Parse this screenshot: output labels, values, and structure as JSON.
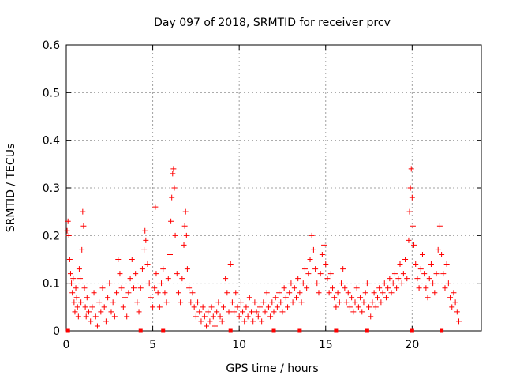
{
  "chart_data": {
    "type": "scatter",
    "title": "Day 097 of 2018, SRMTID for receiver prcv",
    "xlabel": "GPS time / hours",
    "ylabel": "SRMTID / TECUs",
    "xlim": [
      0,
      24
    ],
    "ylim": [
      0,
      0.6
    ],
    "x_ticks": [
      0,
      5,
      10,
      15,
      20
    ],
    "x_tick_labels": [
      "0",
      "5",
      "10",
      "15",
      "20"
    ],
    "y_ticks": [
      0,
      0.1,
      0.2,
      0.3,
      0.4,
      0.5,
      0.6
    ],
    "y_tick_labels": [
      "0",
      "0.1",
      "0.2",
      "0.3",
      "0.4",
      "0.5",
      "0.6"
    ],
    "grid": true,
    "marker": "plus",
    "color": "#ff0000",
    "series": [
      {
        "name": "SRMTID",
        "points": [
          [
            0.05,
            0.21
          ],
          [
            0.1,
            0.23
          ],
          [
            0.15,
            0.2
          ],
          [
            0.2,
            0.15
          ],
          [
            0.25,
            0.12
          ],
          [
            0.3,
            0.1
          ],
          [
            0.35,
            0.08
          ],
          [
            0.4,
            0.11
          ],
          [
            0.45,
            0.06
          ],
          [
            0.5,
            0.04
          ],
          [
            0.55,
            0.09
          ],
          [
            0.6,
            0.07
          ],
          [
            0.65,
            0.05
          ],
          [
            0.7,
            0.03
          ],
          [
            0.75,
            0.13
          ],
          [
            0.8,
            0.11
          ],
          [
            0.85,
            0.06
          ],
          [
            0.9,
            0.17
          ],
          [
            0.95,
            0.25
          ],
          [
            1.0,
            0.22
          ],
          [
            1.05,
            0.09
          ],
          [
            1.1,
            0.05
          ],
          [
            1.15,
            0.03
          ],
          [
            1.2,
            0.07
          ],
          [
            1.3,
            0.04
          ],
          [
            1.4,
            0.02
          ],
          [
            1.5,
            0.05
          ],
          [
            1.6,
            0.08
          ],
          [
            1.7,
            0.03
          ],
          [
            1.8,
            0.01
          ],
          [
            1.9,
            0.06
          ],
          [
            2.0,
            0.04
          ],
          [
            2.1,
            0.09
          ],
          [
            2.2,
            0.05
          ],
          [
            2.3,
            0.02
          ],
          [
            2.4,
            0.07
          ],
          [
            2.5,
            0.1
          ],
          [
            2.6,
            0.04
          ],
          [
            2.7,
            0.06
          ],
          [
            2.8,
            0.03
          ],
          [
            2.9,
            0.08
          ],
          [
            3.0,
            0.15
          ],
          [
            3.1,
            0.12
          ],
          [
            3.2,
            0.09
          ],
          [
            3.3,
            0.05
          ],
          [
            3.4,
            0.07
          ],
          [
            3.5,
            0.03
          ],
          [
            3.6,
            0.08
          ],
          [
            3.7,
            0.11
          ],
          [
            3.8,
            0.15
          ],
          [
            3.9,
            0.09
          ],
          [
            4.0,
            0.12
          ],
          [
            4.1,
            0.06
          ],
          [
            4.2,
            0.04
          ],
          [
            4.3,
            0.09
          ],
          [
            4.4,
            0.13
          ],
          [
            4.5,
            0.17
          ],
          [
            4.55,
            0.21
          ],
          [
            4.6,
            0.19
          ],
          [
            4.7,
            0.14
          ],
          [
            4.8,
            0.1
          ],
          [
            4.9,
            0.07
          ],
          [
            5.0,
            0.05
          ],
          [
            5.1,
            0.09
          ],
          [
            5.15,
            0.26
          ],
          [
            5.2,
            0.12
          ],
          [
            5.3,
            0.08
          ],
          [
            5.4,
            0.05
          ],
          [
            5.5,
            0.1
          ],
          [
            5.6,
            0.13
          ],
          [
            5.7,
            0.08
          ],
          [
            5.8,
            0.06
          ],
          [
            5.9,
            0.11
          ],
          [
            6.0,
            0.16
          ],
          [
            6.05,
            0.23
          ],
          [
            6.1,
            0.28
          ],
          [
            6.15,
            0.33
          ],
          [
            6.2,
            0.34
          ],
          [
            6.25,
            0.3
          ],
          [
            6.3,
            0.2
          ],
          [
            6.4,
            0.12
          ],
          [
            6.5,
            0.08
          ],
          [
            6.6,
            0.06
          ],
          [
            6.7,
            0.11
          ],
          [
            6.8,
            0.18
          ],
          [
            6.85,
            0.22
          ],
          [
            6.9,
            0.25
          ],
          [
            6.95,
            0.2
          ],
          [
            7.0,
            0.13
          ],
          [
            7.1,
            0.09
          ],
          [
            7.2,
            0.06
          ],
          [
            7.3,
            0.08
          ],
          [
            7.4,
            0.05
          ],
          [
            7.5,
            0.03
          ],
          [
            7.6,
            0.06
          ],
          [
            7.7,
            0.04
          ],
          [
            7.8,
            0.02
          ],
          [
            7.9,
            0.05
          ],
          [
            8.0,
            0.03
          ],
          [
            8.1,
            0.01
          ],
          [
            8.2,
            0.04
          ],
          [
            8.3,
            0.02
          ],
          [
            8.4,
            0.05
          ],
          [
            8.5,
            0.03
          ],
          [
            8.6,
            0.01
          ],
          [
            8.7,
            0.04
          ],
          [
            8.8,
            0.06
          ],
          [
            8.9,
            0.03
          ],
          [
            9.0,
            0.02
          ],
          [
            9.1,
            0.05
          ],
          [
            9.2,
            0.11
          ],
          [
            9.3,
            0.08
          ],
          [
            9.4,
            0.04
          ],
          [
            9.5,
            0.14
          ],
          [
            9.6,
            0.06
          ],
          [
            9.7,
            0.04
          ],
          [
            9.8,
            0.08
          ],
          [
            9.9,
            0.05
          ],
          [
            10.0,
            0.03
          ],
          [
            10.1,
            0.06
          ],
          [
            10.2,
            0.04
          ],
          [
            10.3,
            0.02
          ],
          [
            10.4,
            0.05
          ],
          [
            10.5,
            0.03
          ],
          [
            10.6,
            0.07
          ],
          [
            10.7,
            0.04
          ],
          [
            10.8,
            0.02
          ],
          [
            10.9,
            0.06
          ],
          [
            11.0,
            0.04
          ],
          [
            11.1,
            0.03
          ],
          [
            11.2,
            0.05
          ],
          [
            11.3,
            0.02
          ],
          [
            11.4,
            0.06
          ],
          [
            11.5,
            0.04
          ],
          [
            11.6,
            0.08
          ],
          [
            11.7,
            0.05
          ],
          [
            11.8,
            0.03
          ],
          [
            11.9,
            0.06
          ],
          [
            12.0,
            0.04
          ],
          [
            12.1,
            0.07
          ],
          [
            12.2,
            0.05
          ],
          [
            12.3,
            0.08
          ],
          [
            12.4,
            0.06
          ],
          [
            12.5,
            0.04
          ],
          [
            12.6,
            0.09
          ],
          [
            12.7,
            0.07
          ],
          [
            12.8,
            0.05
          ],
          [
            12.9,
            0.08
          ],
          [
            13.0,
            0.1
          ],
          [
            13.1,
            0.06
          ],
          [
            13.2,
            0.09
          ],
          [
            13.3,
            0.07
          ],
          [
            13.4,
            0.11
          ],
          [
            13.5,
            0.08
          ],
          [
            13.6,
            0.06
          ],
          [
            13.7,
            0.1
          ],
          [
            13.8,
            0.13
          ],
          [
            13.9,
            0.09
          ],
          [
            14.0,
            0.12
          ],
          [
            14.1,
            0.15
          ],
          [
            14.2,
            0.2
          ],
          [
            14.3,
            0.17
          ],
          [
            14.4,
            0.13
          ],
          [
            14.5,
            0.1
          ],
          [
            14.6,
            0.08
          ],
          [
            14.7,
            0.12
          ],
          [
            14.8,
            0.16
          ],
          [
            14.9,
            0.18
          ],
          [
            15.0,
            0.14
          ],
          [
            15.1,
            0.11
          ],
          [
            15.2,
            0.08
          ],
          [
            15.3,
            0.12
          ],
          [
            15.4,
            0.09
          ],
          [
            15.5,
            0.07
          ],
          [
            15.6,
            0.05
          ],
          [
            15.7,
            0.08
          ],
          [
            15.8,
            0.06
          ],
          [
            15.9,
            0.1
          ],
          [
            16.0,
            0.13
          ],
          [
            16.1,
            0.09
          ],
          [
            16.2,
            0.06
          ],
          [
            16.3,
            0.08
          ],
          [
            16.4,
            0.05
          ],
          [
            16.5,
            0.07
          ],
          [
            16.6,
            0.04
          ],
          [
            16.7,
            0.06
          ],
          [
            16.8,
            0.09
          ],
          [
            16.9,
            0.05
          ],
          [
            17.0,
            0.07
          ],
          [
            17.1,
            0.04
          ],
          [
            17.2,
            0.06
          ],
          [
            17.3,
            0.08
          ],
          [
            17.4,
            0.1
          ],
          [
            17.5,
            0.05
          ],
          [
            17.6,
            0.03
          ],
          [
            17.7,
            0.06
          ],
          [
            17.8,
            0.08
          ],
          [
            17.9,
            0.05
          ],
          [
            18.0,
            0.07
          ],
          [
            18.1,
            0.09
          ],
          [
            18.2,
            0.06
          ],
          [
            18.3,
            0.08
          ],
          [
            18.4,
            0.1
          ],
          [
            18.5,
            0.07
          ],
          [
            18.6,
            0.09
          ],
          [
            18.7,
            0.11
          ],
          [
            18.8,
            0.08
          ],
          [
            18.9,
            0.1
          ],
          [
            19.0,
            0.12
          ],
          [
            19.1,
            0.09
          ],
          [
            19.2,
            0.11
          ],
          [
            19.3,
            0.14
          ],
          [
            19.4,
            0.1
          ],
          [
            19.5,
            0.12
          ],
          [
            19.6,
            0.15
          ],
          [
            19.7,
            0.11
          ],
          [
            19.8,
            0.19
          ],
          [
            19.85,
            0.25
          ],
          [
            19.9,
            0.3
          ],
          [
            19.95,
            0.34
          ],
          [
            20.0,
            0.28
          ],
          [
            20.05,
            0.22
          ],
          [
            20.1,
            0.18
          ],
          [
            20.2,
            0.14
          ],
          [
            20.3,
            0.11
          ],
          [
            20.4,
            0.09
          ],
          [
            20.5,
            0.13
          ],
          [
            20.6,
            0.16
          ],
          [
            20.7,
            0.12
          ],
          [
            20.8,
            0.09
          ],
          [
            20.9,
            0.07
          ],
          [
            21.0,
            0.11
          ],
          [
            21.1,
            0.14
          ],
          [
            21.2,
            0.1
          ],
          [
            21.3,
            0.08
          ],
          [
            21.4,
            0.12
          ],
          [
            21.5,
            0.17
          ],
          [
            21.6,
            0.22
          ],
          [
            21.7,
            0.16
          ],
          [
            21.8,
            0.12
          ],
          [
            21.9,
            0.09
          ],
          [
            22.0,
            0.14
          ],
          [
            22.1,
            0.1
          ],
          [
            22.2,
            0.07
          ],
          [
            22.3,
            0.05
          ],
          [
            22.4,
            0.08
          ],
          [
            22.5,
            0.06
          ],
          [
            22.6,
            0.04
          ],
          [
            22.7,
            0.02
          ]
        ]
      }
    ],
    "baseline_markers_x": [
      0.1,
      4.3,
      5.6,
      9.5,
      12.0,
      13.5,
      15.6,
      17.4,
      20.0,
      21.7
    ]
  }
}
